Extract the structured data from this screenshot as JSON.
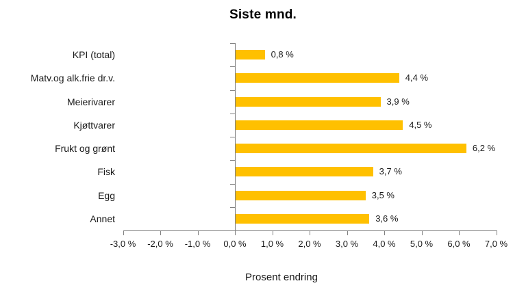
{
  "chart_data": {
    "type": "bar",
    "orientation": "horizontal",
    "title": "Siste mnd.",
    "xlabel": "Prosent endring",
    "categories": [
      "KPI (total)",
      "Matv.og alk.frie dr.v.",
      "Meierivarer",
      "Kjøttvarer",
      "Frukt og grønt",
      "Fisk",
      "Egg",
      "Annet"
    ],
    "values": [
      0.8,
      4.4,
      3.9,
      4.5,
      6.2,
      3.7,
      3.5,
      3.6
    ],
    "value_labels": [
      "0,8 %",
      "4,4 %",
      "3,9 %",
      "4,5 %",
      "6,2 %",
      "3,7 %",
      "3,5 %",
      "3,6 %"
    ],
    "xlim": [
      -3,
      7
    ],
    "x_ticks": [
      -3,
      -2,
      -1,
      0,
      1,
      2,
      3,
      4,
      5,
      6,
      7
    ],
    "x_tick_labels": [
      "-3,0 %",
      "-2,0 %",
      "-1,0 %",
      "0,0 %",
      "1,0 %",
      "2,0 %",
      "3,0 %",
      "4,0 %",
      "5,0 %",
      "6,0 %",
      "7,0 %"
    ],
    "grid": false,
    "legend": "none",
    "colors": {
      "bar": "#FFC000",
      "axis": "#808080",
      "text": "#1A1A1A",
      "title_text": "#000000",
      "background": "#FFFFFF"
    }
  }
}
